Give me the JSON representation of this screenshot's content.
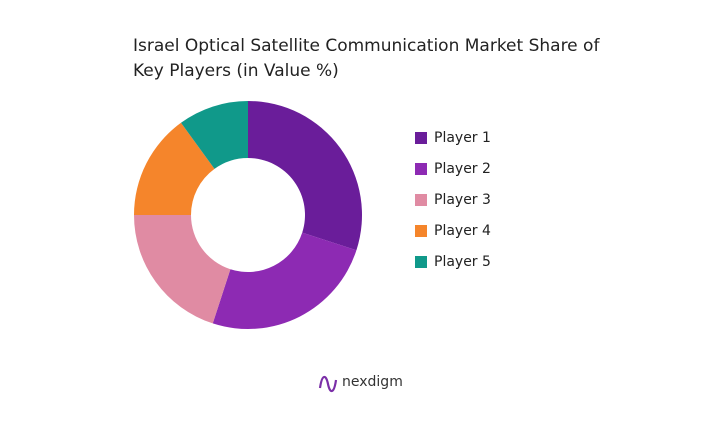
{
  "chart_data": {
    "type": "donut",
    "title": "Israel Optical Satellite Communication Market Share of Key Players (in Value %)",
    "categories": [
      "Player 1",
      "Player 2",
      "Player 3",
      "Player 4",
      "Player 5"
    ],
    "values": [
      30,
      25,
      20,
      15,
      10
    ],
    "colors": [
      "#6a1d9a",
      "#8d2ab3",
      "#e08ba3",
      "#f5852b",
      "#10998a"
    ],
    "legend": "right"
  },
  "brand": "nexdigm"
}
